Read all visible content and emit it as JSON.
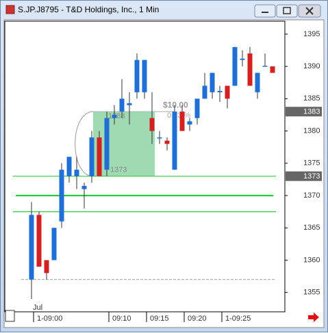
{
  "window": {
    "title": "S.JP.J8795 - T&D Holdings, Inc., 1 Min"
  },
  "chart_data": {
    "type": "candlestick",
    "categories": [
      "1-09:00",
      null,
      null,
      null,
      null,
      null,
      null,
      null,
      null,
      null,
      "09:10",
      null,
      null,
      null,
      null,
      "09:15",
      null,
      null,
      null,
      null,
      "09:20",
      null,
      null,
      null,
      null,
      "1-09:25",
      null,
      null,
      null,
      null,
      null,
      null,
      null
    ],
    "period_label": "Jul",
    "open": [
      1357,
      1367,
      1360,
      1360,
      1366,
      1373,
      1373,
      1371,
      1373,
      1379,
      1374,
      1382,
      1383,
      1384,
      1386,
      1386,
      1382,
      1379,
      1378.5,
      1374,
      1383,
      1381,
      1382,
      1385,
      1386,
      1386,
      1387,
      1387,
      1391,
      1392,
      1386,
      1390,
      1390
    ],
    "high": [
      1369,
      1367.5,
      1360,
      1365,
      1375,
      1376,
      1376,
      1372,
      1380,
      1380,
      1383,
      1384,
      1388,
      1386,
      1392,
      1391,
      1386,
      1380,
      1379,
      1384,
      1384,
      1382,
      1385,
      1389,
      1389,
      1387,
      1387,
      1393,
      1392.5,
      1393,
      1389,
      1392,
      1390
    ],
    "low": [
      1354,
      1359,
      1357,
      1360,
      1365,
      1372,
      1371,
      1368,
      1372,
      1373,
      1373,
      1381,
      1382,
      1381,
      1385,
      1385,
      1378,
      1378,
      1377,
      1374,
      1380,
      1380,
      1381,
      1385,
      1385,
      1384.5,
      1383.5,
      1387,
      1390,
      1387,
      1385,
      1390,
      1389
    ],
    "close": [
      1367,
      1359,
      1358,
      1365,
      1374,
      1376,
      1374,
      1371.5,
      1379,
      1373,
      1382,
      1382.5,
      1385,
      1384.3,
      1391,
      1391,
      1380,
      1379,
      1378,
      1383,
      1380,
      1381.5,
      1385,
      1387,
      1389,
      1386.2,
      1385,
      1393,
      1391.2,
      1387,
      1389,
      1390.1,
      1389
    ],
    "up_color": "#1f6fd6",
    "down_color": "#d42020",
    "ylim": [
      1352,
      1397
    ],
    "yticks": [
      1355,
      1360,
      1365,
      1370,
      1375,
      1380,
      1385,
      1390,
      1395
    ],
    "levels": [
      {
        "price": 1373,
        "color": "#2ecc40"
      },
      {
        "price": 1370,
        "color": "#22c93a"
      },
      {
        "price": 1367.5,
        "color": "#2ecc40"
      },
      {
        "price": 1357,
        "color": "#999999"
      }
    ],
    "price_markers": [
      1383,
      1373
    ],
    "zone": {
      "high": 1383,
      "low": 1373,
      "change": "$10.00",
      "change_pct": "0.73 %",
      "color": "#8fd4a4"
    }
  }
}
